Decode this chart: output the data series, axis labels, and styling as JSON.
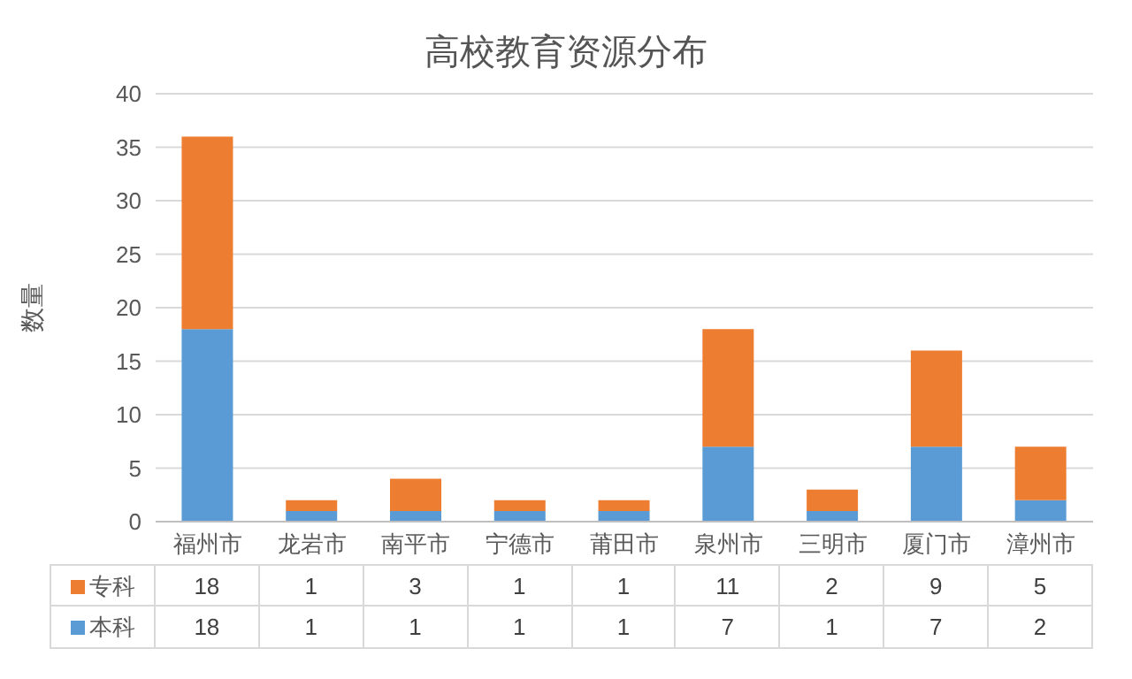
{
  "chart_data": {
    "type": "bar",
    "title": "高校教育资源分布",
    "ylabel": "数量",
    "categories": [
      "福州市",
      "龙岩市",
      "南平市",
      "宁德市",
      "莆田市",
      "泉州市",
      "三明市",
      "厦门市",
      "漳州市"
    ],
    "series": [
      {
        "name": "本科",
        "color": "#5b9bd5",
        "values": [
          18,
          1,
          1,
          1,
          1,
          7,
          1,
          7,
          2
        ]
      },
      {
        "name": "专科",
        "color": "#ed7d31",
        "values": [
          18,
          1,
          3,
          1,
          1,
          11,
          2,
          9,
          5
        ]
      }
    ],
    "stacked": true,
    "ylim": [
      0,
      40
    ],
    "yticks": [
      0,
      5,
      10,
      15,
      20,
      25,
      30,
      35,
      40
    ],
    "grid": "y",
    "legend": "bottom",
    "data_labels": true
  }
}
